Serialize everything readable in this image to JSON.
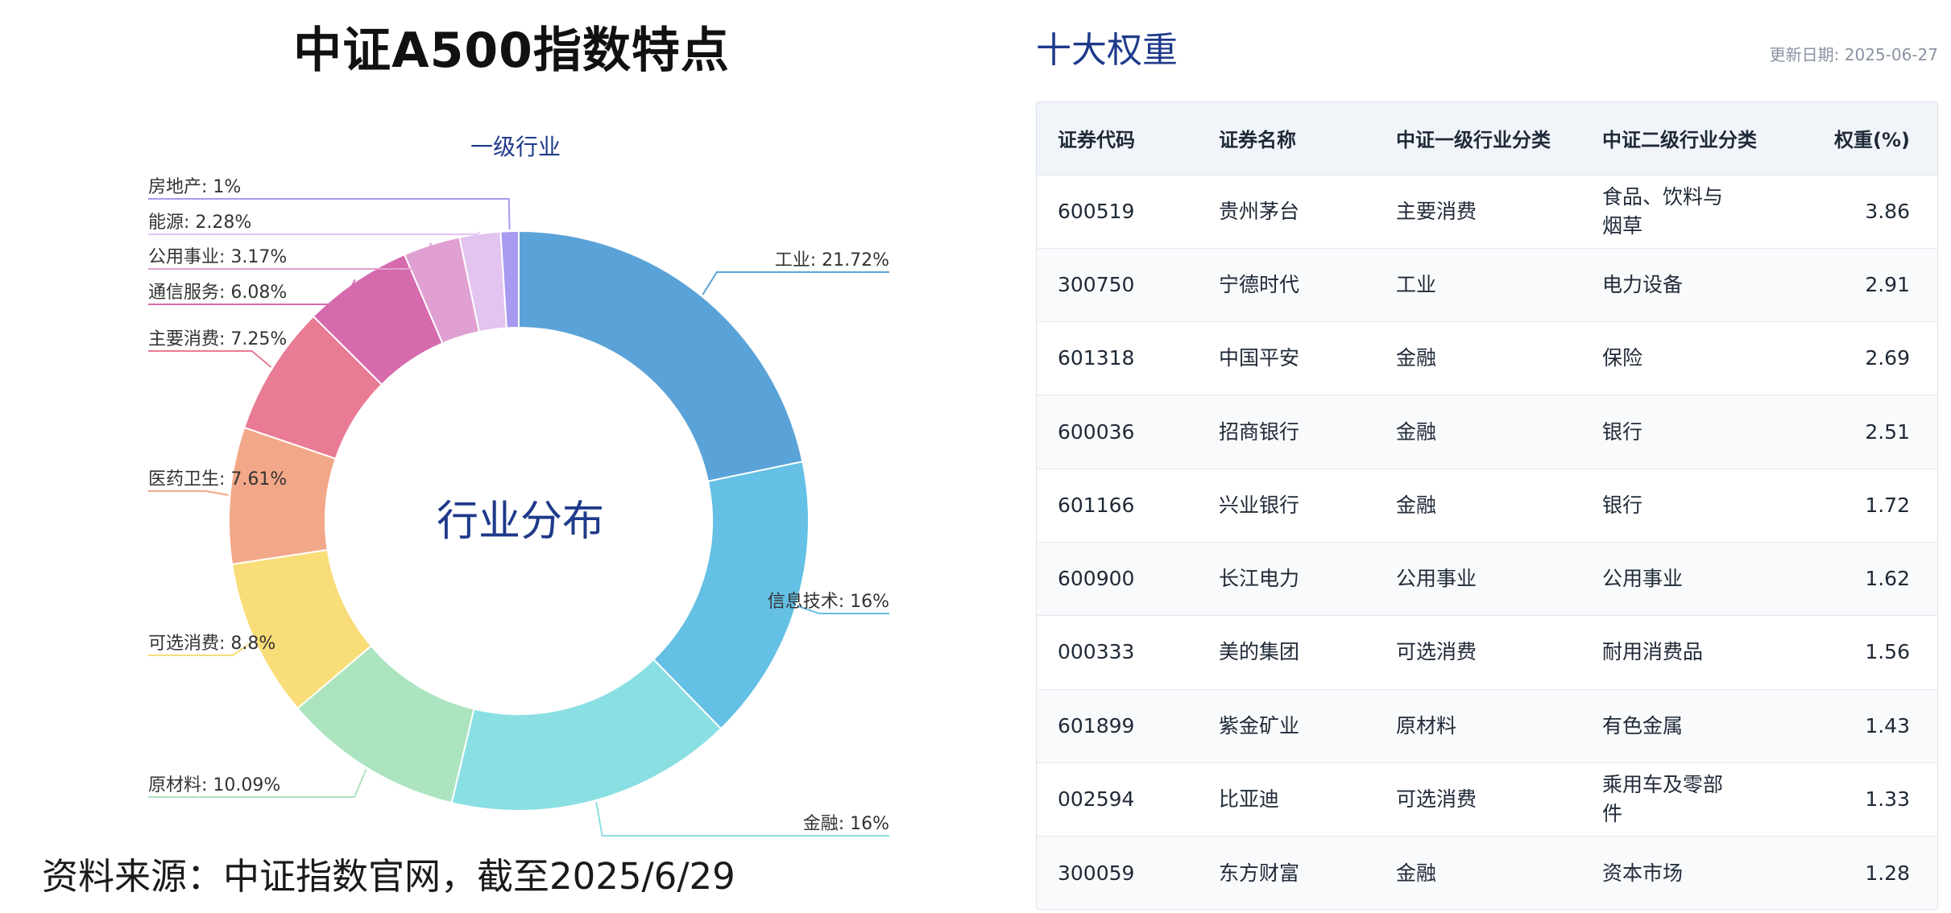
{
  "left_panel": {
    "title": "中证A500指数特点",
    "source": "资料来源：中证指数官网，截至2025/6/29"
  },
  "chart_data": {
    "type": "pie",
    "donut": true,
    "title": "一级行业",
    "center_text": "行业分布",
    "slices": [
      {
        "label": "工业",
        "value": 21.72,
        "display": "21.72%",
        "color": "#5aa3d8"
      },
      {
        "label": "信息技术",
        "value": 16,
        "display": "16%",
        "color": "#64c0e4"
      },
      {
        "label": "金融",
        "value": 16,
        "display": "16%",
        "color": "#8adfe3"
      },
      {
        "label": "原材料",
        "value": 10.09,
        "display": "10.09%",
        "color": "#abe4bf"
      },
      {
        "label": "可选消费",
        "value": 8.8,
        "display": "8.8%",
        "color": "#f8dd78"
      },
      {
        "label": "医药卫生",
        "value": 7.61,
        "display": "7.61%",
        "color": "#f2a888"
      },
      {
        "label": "主要消费",
        "value": 7.25,
        "display": "7.25%",
        "color": "#ea7b94"
      },
      {
        "label": "通信服务",
        "value": 6.08,
        "display": "6.08%",
        "color": "#d56aad"
      },
      {
        "label": "公用事业",
        "value": 3.17,
        "display": "3.17%",
        "color": "#e0a0d2"
      },
      {
        "label": "能源",
        "value": 2.28,
        "display": "2.28%",
        "color": "#e3c4f0"
      },
      {
        "label": "房地产",
        "value": 1,
        "display": "1%",
        "color": "#a89af0"
      }
    ]
  },
  "table_panel": {
    "title": "十大权重",
    "update_date": "更新日期: 2025-06-27",
    "headers": [
      "证券代码",
      "证券名称",
      "中证一级行业分类",
      "中证二级行业分类",
      "权重(%)"
    ],
    "rows": [
      [
        "600519",
        "贵州茅台",
        "主要消费",
        "食品、饮料与烟草",
        "3.86"
      ],
      [
        "300750",
        "宁德时代",
        "工业",
        "电力设备",
        "2.91"
      ],
      [
        "601318",
        "中国平安",
        "金融",
        "保险",
        "2.69"
      ],
      [
        "600036",
        "招商银行",
        "金融",
        "银行",
        "2.51"
      ],
      [
        "601166",
        "兴业银行",
        "金融",
        "银行",
        "1.72"
      ],
      [
        "600900",
        "长江电力",
        "公用事业",
        "公用事业",
        "1.62"
      ],
      [
        "000333",
        "美的集团",
        "可选消费",
        "耐用消费品",
        "1.56"
      ],
      [
        "601899",
        "紫金矿业",
        "原材料",
        "有色金属",
        "1.43"
      ],
      [
        "002594",
        "比亚迪",
        "可选消费",
        "乘用车及零部件",
        "1.33"
      ],
      [
        "300059",
        "东方财富",
        "金融",
        "资本市场",
        "1.28"
      ]
    ]
  }
}
